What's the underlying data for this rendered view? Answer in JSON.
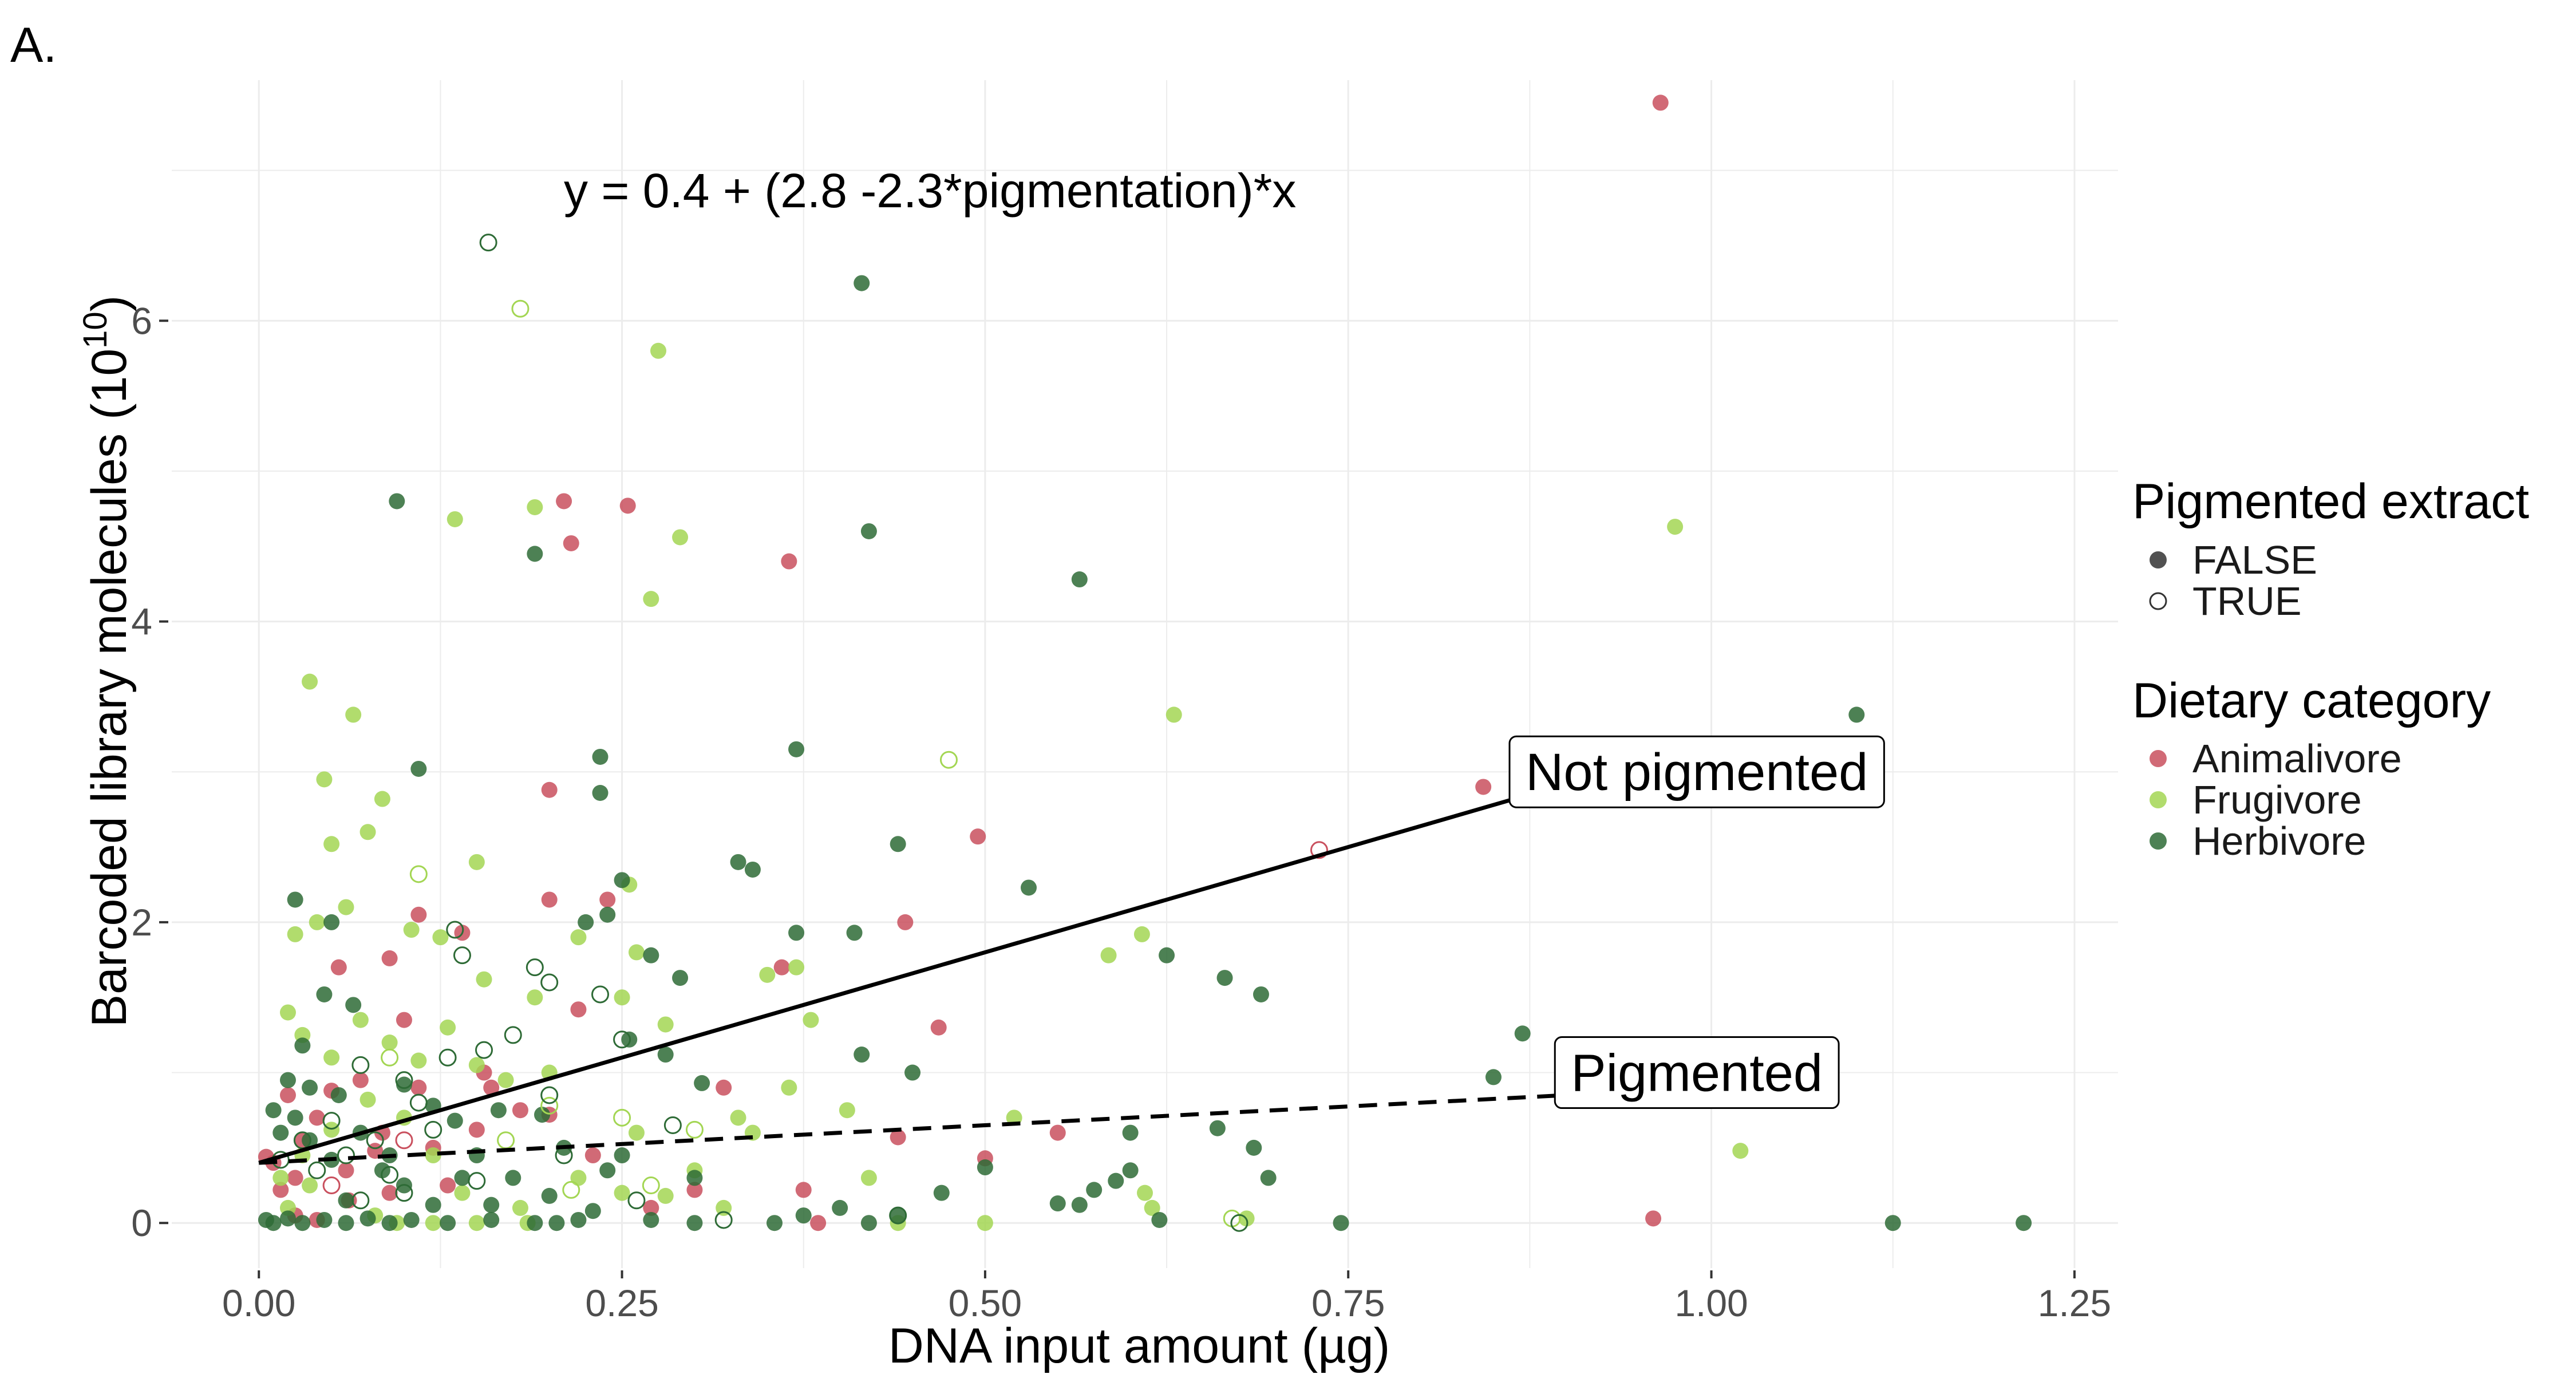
{
  "panel_label": "A.",
  "chart_data": {
    "type": "scatter",
    "title": "",
    "xlabel": "DNA input amount (µg)",
    "ylabel_main": "Barcoded library molecules (10",
    "ylabel_sup": "10",
    "ylabel_close": ")",
    "xlim": [
      -0.06,
      1.28
    ],
    "ylim": [
      -0.3,
      7.6
    ],
    "x_ticks": [
      0.0,
      0.25,
      0.5,
      0.75,
      1.0,
      1.25
    ],
    "x_tick_labels": [
      "0.00",
      "0.25",
      "0.50",
      "0.75",
      "1.00",
      "1.25"
    ],
    "y_ticks": [
      0,
      2,
      4,
      6
    ],
    "y_tick_labels": [
      "0",
      "2",
      "4",
      "6"
    ],
    "grid": true,
    "annotation": "y = 0.4 + (2.8 -2.3*pigmentation)*x",
    "legend_position": "right",
    "legend": {
      "pigment_title": "Pigmented extract",
      "pigment_items": [
        "FALSE",
        "TRUE"
      ],
      "diet_title": "Dietary category",
      "diet_items": [
        {
          "name": "Animalivore",
          "color": "#c9505e"
        },
        {
          "name": "Frugivore",
          "color": "#a3d653"
        },
        {
          "name": "Herbivore",
          "color": "#2e6b36"
        }
      ]
    },
    "lines": [
      {
        "label": "Not pigmented",
        "style": "solid",
        "intercept": 0.4,
        "slope": 2.8,
        "x": [
          0.0,
          0.87
        ],
        "label_x": 0.99,
        "label_y": 3.0
      },
      {
        "label": "Pigmented",
        "style": "dashed",
        "intercept": 0.4,
        "slope": 0.5,
        "x": [
          0.0,
          0.92
        ],
        "label_x": 0.99,
        "label_y": 1.0
      }
    ],
    "series": [
      {
        "name": "Animalivore",
        "pigmented": false,
        "color": "#c9505e",
        "points": [
          [
            0.965,
            7.45
          ],
          [
            0.21,
            4.8
          ],
          [
            0.254,
            4.77
          ],
          [
            0.215,
            4.52
          ],
          [
            0.365,
            4.4
          ],
          [
            0.2,
            2.88
          ],
          [
            0.495,
            2.57
          ],
          [
            0.843,
            2.9
          ],
          [
            0.96,
            0.03
          ],
          [
            0.2,
            2.15
          ],
          [
            0.24,
            2.15
          ],
          [
            0.11,
            2.05
          ],
          [
            0.22,
            1.42
          ],
          [
            0.14,
            1.93
          ],
          [
            0.09,
            1.76
          ],
          [
            0.055,
            1.7
          ],
          [
            0.36,
            1.7
          ],
          [
            0.445,
            2.0
          ],
          [
            0.468,
            1.3
          ],
          [
            0.5,
            0.43
          ],
          [
            0.385,
            0.0
          ],
          [
            0.375,
            0.22
          ],
          [
            0.44,
            0.57
          ],
          [
            0.32,
            0.9
          ],
          [
            0.23,
            0.45
          ],
          [
            0.08,
            0.48
          ],
          [
            0.04,
            0.7
          ],
          [
            0.03,
            0.55
          ],
          [
            0.02,
            0.85
          ],
          [
            0.01,
            0.4
          ],
          [
            0.005,
            0.44
          ],
          [
            0.015,
            0.22
          ],
          [
            0.06,
            0.35
          ],
          [
            0.07,
            0.95
          ],
          [
            0.1,
            1.35
          ],
          [
            0.12,
            0.5
          ],
          [
            0.15,
            0.62
          ],
          [
            0.16,
            0.9
          ],
          [
            0.18,
            0.75
          ],
          [
            0.2,
            0.72
          ],
          [
            0.09,
            0.2
          ],
          [
            0.13,
            0.25
          ],
          [
            0.05,
            0.88
          ],
          [
            0.025,
            0.3
          ],
          [
            0.085,
            0.6
          ],
          [
            0.11,
            0.9
          ],
          [
            0.155,
            1.0
          ],
          [
            0.062,
            0.15
          ],
          [
            0.04,
            0.02
          ],
          [
            0.025,
            0.05
          ],
          [
            0.27,
            0.1
          ],
          [
            0.3,
            0.22
          ],
          [
            0.55,
            0.6
          ]
        ]
      },
      {
        "name": "Frugivore",
        "pigmented": false,
        "color": "#a3d653",
        "points": [
          [
            0.275,
            5.8
          ],
          [
            0.135,
            4.68
          ],
          [
            0.19,
            4.76
          ],
          [
            0.29,
            4.56
          ],
          [
            0.27,
            4.15
          ],
          [
            0.975,
            4.63
          ],
          [
            0.035,
            3.6
          ],
          [
            0.065,
            3.38
          ],
          [
            0.63,
            3.38
          ],
          [
            0.085,
            2.82
          ],
          [
            0.045,
            2.95
          ],
          [
            0.075,
            2.6
          ],
          [
            0.05,
            2.52
          ],
          [
            0.15,
            2.4
          ],
          [
            0.255,
            2.25
          ],
          [
            0.26,
            1.8
          ],
          [
            0.28,
            1.32
          ],
          [
            0.06,
            2.1
          ],
          [
            0.04,
            2.0
          ],
          [
            0.025,
            1.92
          ],
          [
            0.105,
            1.95
          ],
          [
            0.125,
            1.9
          ],
          [
            0.155,
            1.62
          ],
          [
            0.19,
            1.5
          ],
          [
            0.22,
            1.9
          ],
          [
            0.25,
            1.5
          ],
          [
            0.02,
            1.4
          ],
          [
            0.03,
            1.25
          ],
          [
            0.05,
            1.1
          ],
          [
            0.07,
            1.35
          ],
          [
            0.09,
            1.2
          ],
          [
            0.11,
            1.08
          ],
          [
            0.13,
            1.3
          ],
          [
            0.15,
            1.05
          ],
          [
            0.17,
            0.95
          ],
          [
            0.2,
            1.0
          ],
          [
            0.585,
            1.78
          ],
          [
            0.608,
            1.92
          ],
          [
            0.37,
            1.7
          ],
          [
            0.35,
            1.65
          ],
          [
            0.38,
            1.35
          ],
          [
            0.405,
            0.75
          ],
          [
            0.365,
            0.9
          ],
          [
            0.33,
            0.7
          ],
          [
            0.34,
            0.6
          ],
          [
            0.52,
            0.7
          ],
          [
            0.61,
            0.2
          ],
          [
            0.615,
            0.1
          ],
          [
            0.5,
            0.0
          ],
          [
            0.68,
            0.03
          ],
          [
            1.02,
            0.48
          ],
          [
            0.44,
            0.0
          ],
          [
            0.05,
            0.62
          ],
          [
            0.03,
            0.45
          ],
          [
            0.075,
            0.82
          ],
          [
            0.1,
            0.7
          ],
          [
            0.12,
            0.45
          ],
          [
            0.14,
            0.2
          ],
          [
            0.02,
            0.1
          ],
          [
            0.015,
            0.3
          ],
          [
            0.035,
            0.25
          ],
          [
            0.08,
            0.05
          ],
          [
            0.18,
            0.1
          ],
          [
            0.22,
            0.3
          ],
          [
            0.25,
            0.2
          ],
          [
            0.28,
            0.18
          ],
          [
            0.3,
            0.35
          ],
          [
            0.32,
            0.1
          ],
          [
            0.185,
            0.0
          ],
          [
            0.15,
            0.0
          ],
          [
            0.12,
            0.0
          ],
          [
            0.095,
            0.0
          ],
          [
            0.42,
            0.3
          ],
          [
            0.26,
            0.6
          ]
        ]
      },
      {
        "name": "Herbivore",
        "pigmented": false,
        "color": "#2e6b36",
        "points": [
          [
            0.415,
            6.25
          ],
          [
            0.095,
            4.8
          ],
          [
            0.42,
            4.6
          ],
          [
            0.19,
            4.45
          ],
          [
            0.565,
            4.28
          ],
          [
            1.1,
            3.38
          ],
          [
            0.37,
            3.15
          ],
          [
            0.235,
            3.1
          ],
          [
            0.11,
            3.02
          ],
          [
            0.235,
            2.86
          ],
          [
            0.44,
            2.52
          ],
          [
            0.33,
            2.4
          ],
          [
            0.34,
            2.35
          ],
          [
            0.25,
            2.28
          ],
          [
            0.53,
            2.23
          ],
          [
            0.24,
            2.05
          ],
          [
            0.225,
            2.0
          ],
          [
            0.05,
            2.0
          ],
          [
            0.025,
            2.15
          ],
          [
            0.37,
            1.93
          ],
          [
            0.41,
            1.93
          ],
          [
            0.625,
            1.78
          ],
          [
            0.27,
            1.78
          ],
          [
            0.29,
            1.63
          ],
          [
            0.665,
            1.63
          ],
          [
            0.69,
            1.52
          ],
          [
            0.045,
            1.52
          ],
          [
            0.065,
            1.45
          ],
          [
            0.03,
            1.18
          ],
          [
            0.02,
            0.95
          ],
          [
            0.01,
            0.75
          ],
          [
            0.035,
            0.9
          ],
          [
            0.055,
            0.85
          ],
          [
            0.1,
            0.92
          ],
          [
            0.12,
            0.78
          ],
          [
            0.135,
            0.68
          ],
          [
            0.165,
            0.75
          ],
          [
            0.195,
            0.72
          ],
          [
            0.255,
            1.22
          ],
          [
            0.28,
            1.12
          ],
          [
            0.415,
            1.12
          ],
          [
            0.45,
            1.0
          ],
          [
            0.87,
            1.26
          ],
          [
            0.85,
            0.97
          ],
          [
            0.305,
            0.93
          ],
          [
            0.6,
            0.6
          ],
          [
            0.66,
            0.63
          ],
          [
            0.685,
            0.5
          ],
          [
            0.695,
            0.3
          ],
          [
            0.59,
            0.28
          ],
          [
            0.6,
            0.35
          ],
          [
            0.5,
            0.37
          ],
          [
            0.55,
            0.13
          ],
          [
            0.575,
            0.22
          ],
          [
            0.565,
            0.12
          ],
          [
            0.47,
            0.2
          ],
          [
            0.62,
            0.02
          ],
          [
            0.745,
            0.0
          ],
          [
            1.125,
            0.0
          ],
          [
            1.215,
            0.0
          ],
          [
            0.355,
            0.0
          ],
          [
            0.4,
            0.1
          ],
          [
            0.42,
            0.0
          ],
          [
            0.3,
            0.0
          ],
          [
            0.27,
            0.02
          ],
          [
            0.005,
            0.02
          ],
          [
            0.01,
            0.0
          ],
          [
            0.02,
            0.03
          ],
          [
            0.03,
            0.0
          ],
          [
            0.045,
            0.02
          ],
          [
            0.06,
            0.0
          ],
          [
            0.075,
            0.03
          ],
          [
            0.09,
            0.0
          ],
          [
            0.105,
            0.02
          ],
          [
            0.13,
            0.0
          ],
          [
            0.16,
            0.02
          ],
          [
            0.19,
            0.0
          ],
          [
            0.205,
            0.0
          ],
          [
            0.22,
            0.02
          ],
          [
            0.035,
            0.55
          ],
          [
            0.05,
            0.42
          ],
          [
            0.07,
            0.6
          ],
          [
            0.085,
            0.35
          ],
          [
            0.1,
            0.25
          ],
          [
            0.14,
            0.3
          ],
          [
            0.16,
            0.12
          ],
          [
            0.2,
            0.18
          ],
          [
            0.24,
            0.35
          ],
          [
            0.015,
            0.6
          ],
          [
            0.025,
            0.7
          ],
          [
            0.06,
            0.15
          ],
          [
            0.09,
            0.45
          ],
          [
            0.12,
            0.12
          ],
          [
            0.15,
            0.45
          ],
          [
            0.175,
            0.3
          ],
          [
            0.21,
            0.5
          ],
          [
            0.23,
            0.08
          ],
          [
            0.25,
            0.45
          ],
          [
            0.3,
            0.3
          ],
          [
            0.375,
            0.05
          ],
          [
            0.44,
            0.05
          ]
        ]
      },
      {
        "name": "Animalivore",
        "pigmented": true,
        "color": "#c9505e",
        "points": [
          [
            0.73,
            2.48
          ],
          [
            0.05,
            0.25
          ],
          [
            0.1,
            0.55
          ]
        ]
      },
      {
        "name": "Frugivore",
        "pigmented": true,
        "color": "#a3d653",
        "points": [
          [
            0.18,
            6.08
          ],
          [
            0.475,
            3.08
          ],
          [
            0.11,
            2.32
          ],
          [
            0.09,
            1.1
          ],
          [
            0.2,
            0.78
          ],
          [
            0.25,
            0.7
          ],
          [
            0.215,
            0.22
          ],
          [
            0.3,
            0.62
          ],
          [
            0.67,
            0.03
          ],
          [
            0.27,
            0.25
          ],
          [
            0.17,
            0.55
          ]
        ]
      },
      {
        "name": "Herbivore",
        "pigmented": true,
        "color": "#2e6b36",
        "points": [
          [
            0.158,
            6.52
          ],
          [
            0.135,
            1.95
          ],
          [
            0.14,
            1.78
          ],
          [
            0.19,
            1.7
          ],
          [
            0.2,
            1.6
          ],
          [
            0.235,
            1.52
          ],
          [
            0.25,
            1.22
          ],
          [
            0.07,
            1.05
          ],
          [
            0.1,
            0.95
          ],
          [
            0.13,
            1.1
          ],
          [
            0.155,
            1.15
          ],
          [
            0.175,
            1.25
          ],
          [
            0.11,
            0.8
          ],
          [
            0.05,
            0.68
          ],
          [
            0.03,
            0.55
          ],
          [
            0.06,
            0.45
          ],
          [
            0.09,
            0.32
          ],
          [
            0.1,
            0.2
          ],
          [
            0.07,
            0.15
          ],
          [
            0.15,
            0.28
          ],
          [
            0.21,
            0.45
          ],
          [
            0.26,
            0.15
          ],
          [
            0.32,
            0.02
          ],
          [
            0.44,
            0.05
          ],
          [
            0.675,
            0.0
          ],
          [
            0.04,
            0.35
          ],
          [
            0.08,
            0.55
          ],
          [
            0.12,
            0.62
          ],
          [
            0.2,
            0.85
          ],
          [
            0.285,
            0.65
          ],
          [
            0.015,
            0.42
          ]
        ]
      }
    ]
  }
}
